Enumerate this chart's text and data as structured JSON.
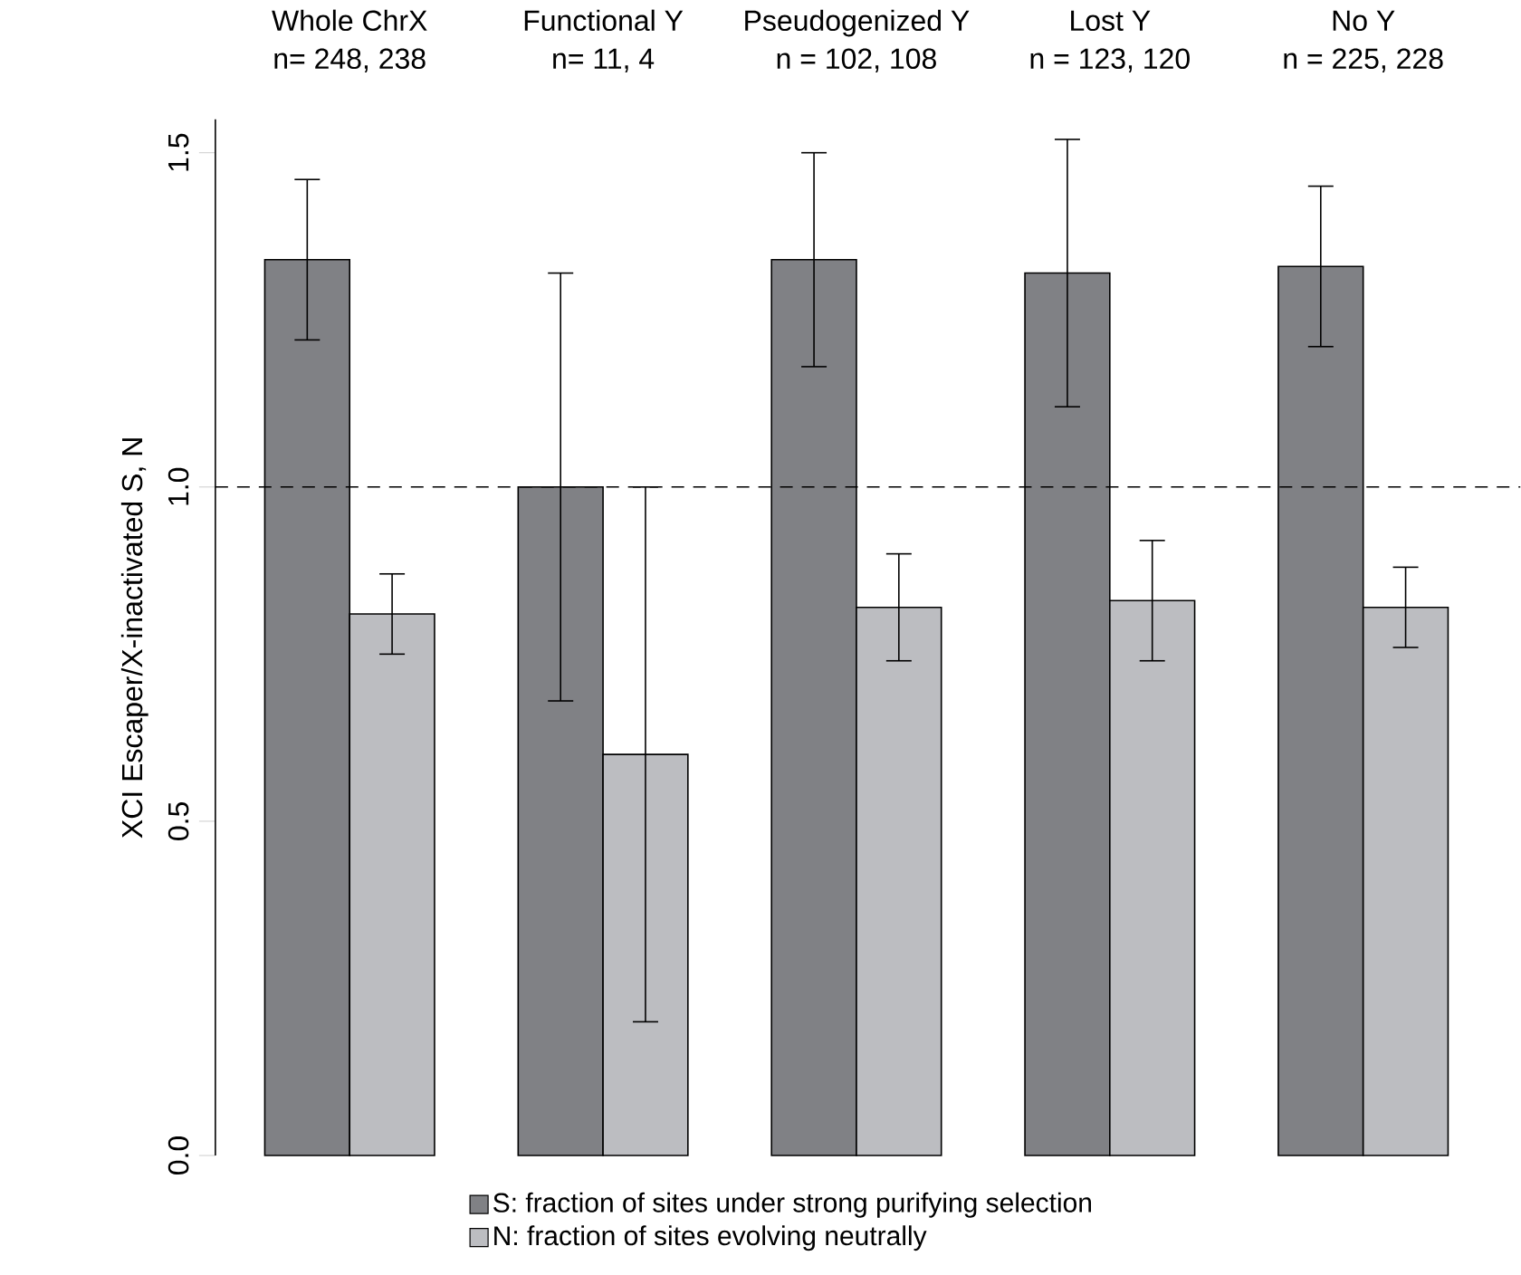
{
  "chart_data": {
    "type": "bar",
    "ylabel": "XCI Escaper/X-inactivated S, N",
    "categories": [
      "Whole ChrX",
      "Functional Y",
      "Pseudogenized Y",
      "Lost Y",
      "No Y"
    ],
    "annotations": [
      "n= 248, 238",
      "n= 11, 4",
      "n = 102, 108",
      "n = 123, 120",
      "n = 225, 228"
    ],
    "series": [
      {
        "name": "S: fraction of sites under strong purifying selection",
        "color": "#808185",
        "values": [
          1.34,
          1.0,
          1.34,
          1.32,
          1.33
        ],
        "errors": [
          [
            1.22,
            1.46
          ],
          [
            0.68,
            1.32
          ],
          [
            1.18,
            1.5
          ],
          [
            1.12,
            1.52
          ],
          [
            1.21,
            1.45
          ]
        ]
      },
      {
        "name": "N: fraction of sites evolving neutrally",
        "color": "#bcbdc1",
        "values": [
          0.81,
          0.6,
          0.82,
          0.83,
          0.82
        ],
        "errors": [
          [
            0.75,
            0.87
          ],
          [
            0.2,
            1.0
          ],
          [
            0.74,
            0.9
          ],
          [
            0.74,
            0.92
          ],
          [
            0.76,
            0.88
          ]
        ]
      }
    ],
    "ylim": [
      0,
      1.55
    ],
    "yticks": [
      {
        "value": 0,
        "label": "0.0"
      },
      {
        "value": 0.5,
        "label": "0.5"
      },
      {
        "value": 1.0,
        "label": "1.0"
      },
      {
        "value": 1.5,
        "label": "1.5"
      }
    ],
    "ref_lines": [
      {
        "axis": "y",
        "value": 1.0,
        "line_style": "dashed"
      }
    ],
    "legend": "bottom",
    "grid": false
  }
}
